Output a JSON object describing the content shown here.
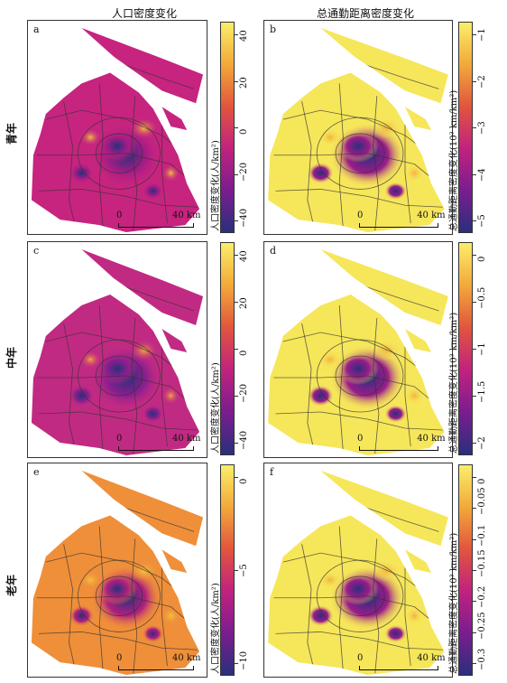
{
  "columns": [
    "人口密度变化",
    "总通勤距离密度变化"
  ],
  "rows": [
    "青年",
    "中年",
    "老年"
  ],
  "panels": [
    {
      "letter": "a",
      "scale_left": "0",
      "scale_right": "40 km",
      "cbar_label": "人口密度变化(人/km²)",
      "ticks": [
        "40",
        "20",
        "0",
        "−20",
        "−40"
      ],
      "colors": {
        "base": "#c6247f",
        "hot": "#f0c13c",
        "cold": "#2a2f7c",
        "mid": "#a51c86"
      }
    },
    {
      "letter": "b",
      "scale_left": "0",
      "scale_right": "40 km",
      "cbar_label": "总通勤距离密度变化(10³ km/km²)",
      "ticks": [
        "−1",
        "−2",
        "−3",
        "−4",
        "−5"
      ],
      "colors": {
        "base": "#f6e65a",
        "hot": "#f3b23c",
        "cold": "#2a2f7c",
        "mid": "#9a1c8a"
      }
    },
    {
      "letter": "c",
      "scale_left": "0",
      "scale_right": "40 km",
      "cbar_label": "人口密度变化(人/km²)",
      "ticks": [
        "40",
        "20",
        "0",
        "−20",
        "−40"
      ],
      "colors": {
        "base": "#c12a83",
        "hot": "#f2a93a",
        "cold": "#2a2f7c",
        "mid": "#8a1f8e"
      }
    },
    {
      "letter": "d",
      "scale_left": "0",
      "scale_right": "40 km",
      "cbar_label": "总通勤距离密度变化(10³ km/km²)",
      "ticks": [
        "0",
        "−0.5",
        "−1",
        "−1.5",
        "−2"
      ],
      "colors": {
        "base": "#f6e65a",
        "hot": "#f3b23c",
        "cold": "#2a2f7c",
        "mid": "#9a1c8a"
      }
    },
    {
      "letter": "e",
      "scale_left": "0",
      "scale_right": "40 km",
      "cbar_label": "人口密度变化(人/km²)",
      "ticks": [
        "0",
        "−5",
        "−10"
      ],
      "colors": {
        "base": "#ef8f3a",
        "hot": "#f5c23d",
        "cold": "#2a2f7c",
        "mid": "#b0207f"
      }
    },
    {
      "letter": "f",
      "scale_left": "0",
      "scale_right": "40 km",
      "cbar_label": "总通勤距离密度变化(10³ km/km²)",
      "ticks": [
        "0",
        "−0.05",
        "−0.1",
        "−0.15",
        "−0.2",
        "−0.25",
        "−0.3"
      ],
      "colors": {
        "base": "#f6e65a",
        "hot": "#f3b23c",
        "cold": "#2a2f7c",
        "mid": "#9a1c8a"
      }
    }
  ],
  "colorbar_gradient": [
    "#fbee6a",
    "#f2a93a",
    "#e2553d",
    "#c2227f",
    "#7a1d8f",
    "#2a2f7c"
  ]
}
